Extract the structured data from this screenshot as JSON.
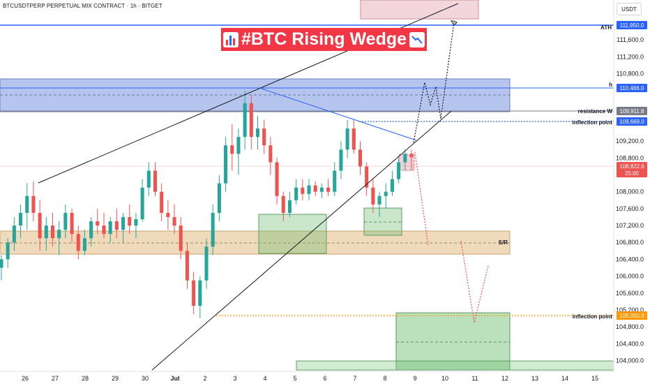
{
  "header": {
    "symbol_line": "BTCUSDTPERP PERPETUAL MIX CONTRACT · 1h · BITGET",
    "unit": "USDT"
  },
  "title": {
    "text": "#BTC Rising Wedge",
    "left_icon": "bar-chart-icon",
    "right_icon": "chart-decreasing-icon"
  },
  "colors": {
    "bull": "#26a69a",
    "bear": "#ef5350",
    "zone_blue": "#5b7fd6",
    "zone_orange": "#e0b57a",
    "zone_green": "#66bb6a",
    "zone_pink": "#e9b4bf",
    "ath_line": "#2962ff",
    "inflection_orange": "#ff9800",
    "title_bg": "#f23645"
  },
  "chart_data": {
    "type": "candlestick",
    "title": "#BTC Rising Wedge",
    "ylim": [
      103800,
      112500
    ],
    "x_ticks": [
      "26",
      "27",
      "28",
      "29",
      "30",
      "Jul",
      "2",
      "3",
      "4",
      "5",
      "6",
      "7",
      "8",
      "9",
      "10",
      "11",
      "12",
      "13",
      "14",
      "15"
    ],
    "y_ticks": [
      "111,600.0",
      "111,200.0",
      "110,800.0",
      "109,200.0",
      "108,800.0",
      "108,000.0",
      "107,600.0",
      "107,200.0",
      "106,800.0",
      "106,400.0",
      "106,000.0",
      "105,600.0",
      "105,200.0",
      "104,800.0",
      "104,400.0",
      "104,000.0"
    ],
    "price_badges": [
      {
        "label": "ATH",
        "value": "111,950.0"
      },
      {
        "label": "h",
        "value": "110,466.0"
      },
      {
        "label": "resistance W",
        "value": "109,911.8"
      },
      {
        "label": "inflection point",
        "value": "109,669.0"
      },
      {
        "label": "",
        "value": "108,822.6",
        "sub": "25:00"
      },
      {
        "label": "S/R",
        "value": ""
      },
      {
        "label": "inflection point",
        "value": "105,050.0"
      }
    ],
    "candles": [
      {
        "o": 106200,
        "h": 106500,
        "l": 105900,
        "c": 106400
      },
      {
        "o": 106400,
        "h": 106900,
        "l": 106200,
        "c": 106800
      },
      {
        "o": 106800,
        "h": 107400,
        "l": 106600,
        "c": 107200
      },
      {
        "o": 107200,
        "h": 107700,
        "l": 106900,
        "c": 107500
      },
      {
        "o": 107500,
        "h": 108200,
        "l": 107100,
        "c": 107900
      },
      {
        "o": 107900,
        "h": 108250,
        "l": 107300,
        "c": 107500
      },
      {
        "o": 107500,
        "h": 107800,
        "l": 106600,
        "c": 106900
      },
      {
        "o": 106900,
        "h": 107400,
        "l": 106600,
        "c": 107200
      },
      {
        "o": 107200,
        "h": 107500,
        "l": 106700,
        "c": 106900
      },
      {
        "o": 106900,
        "h": 107300,
        "l": 106500,
        "c": 107100
      },
      {
        "o": 107100,
        "h": 107700,
        "l": 106900,
        "c": 107500
      },
      {
        "o": 107500,
        "h": 107600,
        "l": 106800,
        "c": 107000
      },
      {
        "o": 107000,
        "h": 107200,
        "l": 106400,
        "c": 106600
      },
      {
        "o": 106600,
        "h": 107100,
        "l": 106500,
        "c": 106900
      },
      {
        "o": 106900,
        "h": 107400,
        "l": 106700,
        "c": 107300
      },
      {
        "o": 107300,
        "h": 107600,
        "l": 107000,
        "c": 107200
      },
      {
        "o": 107200,
        "h": 107500,
        "l": 106900,
        "c": 107000
      },
      {
        "o": 107000,
        "h": 107400,
        "l": 106800,
        "c": 107300
      },
      {
        "o": 107300,
        "h": 107600,
        "l": 106900,
        "c": 107100
      },
      {
        "o": 107100,
        "h": 107500,
        "l": 106800,
        "c": 107400
      },
      {
        "o": 107400,
        "h": 107700,
        "l": 107000,
        "c": 107200
      },
      {
        "o": 107200,
        "h": 107500,
        "l": 106900,
        "c": 107350
      },
      {
        "o": 107350,
        "h": 108300,
        "l": 107300,
        "c": 108100
      },
      {
        "o": 108100,
        "h": 108700,
        "l": 107900,
        "c": 108500
      },
      {
        "o": 108500,
        "h": 108700,
        "l": 107900,
        "c": 108000
      },
      {
        "o": 108000,
        "h": 108200,
        "l": 107300,
        "c": 107500
      },
      {
        "o": 107500,
        "h": 107800,
        "l": 107100,
        "c": 107400
      },
      {
        "o": 107400,
        "h": 107700,
        "l": 107000,
        "c": 107200
      },
      {
        "o": 107200,
        "h": 107400,
        "l": 106400,
        "c": 106600
      },
      {
        "o": 106600,
        "h": 106800,
        "l": 105700,
        "c": 105900
      },
      {
        "o": 105900,
        "h": 106100,
        "l": 105100,
        "c": 105300
      },
      {
        "o": 105300,
        "h": 106000,
        "l": 105000,
        "c": 105900
      },
      {
        "o": 105900,
        "h": 106900,
        "l": 105700,
        "c": 106700
      },
      {
        "o": 106700,
        "h": 107700,
        "l": 106500,
        "c": 107500
      },
      {
        "o": 107500,
        "h": 108400,
        "l": 107300,
        "c": 108200
      },
      {
        "o": 108200,
        "h": 109300,
        "l": 108000,
        "c": 109100
      },
      {
        "o": 109100,
        "h": 109600,
        "l": 108500,
        "c": 108900
      },
      {
        "o": 108900,
        "h": 109500,
        "l": 108400,
        "c": 109300
      },
      {
        "o": 109300,
        "h": 110400,
        "l": 109000,
        "c": 110100
      },
      {
        "o": 110100,
        "h": 110300,
        "l": 109000,
        "c": 109300
      },
      {
        "o": 109300,
        "h": 109800,
        "l": 109000,
        "c": 109500
      },
      {
        "o": 109500,
        "h": 109700,
        "l": 108900,
        "c": 109100
      },
      {
        "o": 109100,
        "h": 109300,
        "l": 108400,
        "c": 108700
      },
      {
        "o": 108700,
        "h": 108800,
        "l": 107700,
        "c": 107900
      },
      {
        "o": 107900,
        "h": 108000,
        "l": 107300,
        "c": 107500
      },
      {
        "o": 107500,
        "h": 108000,
        "l": 107400,
        "c": 107800
      },
      {
        "o": 107800,
        "h": 108300,
        "l": 107700,
        "c": 108100
      },
      {
        "o": 108100,
        "h": 108300,
        "l": 107800,
        "c": 107950
      },
      {
        "o": 107950,
        "h": 108300,
        "l": 107800,
        "c": 108150
      },
      {
        "o": 108150,
        "h": 108250,
        "l": 107900,
        "c": 108000
      },
      {
        "o": 108000,
        "h": 108200,
        "l": 107850,
        "c": 108100
      },
      {
        "o": 108100,
        "h": 108300,
        "l": 107900,
        "c": 108000
      },
      {
        "o": 108000,
        "h": 108700,
        "l": 107900,
        "c": 108500
      },
      {
        "o": 108500,
        "h": 109200,
        "l": 108300,
        "c": 109000
      },
      {
        "o": 109000,
        "h": 109700,
        "l": 108800,
        "c": 109500
      },
      {
        "o": 109500,
        "h": 109700,
        "l": 108900,
        "c": 109000
      },
      {
        "o": 109000,
        "h": 109200,
        "l": 108400,
        "c": 108600
      },
      {
        "o": 108600,
        "h": 108700,
        "l": 107900,
        "c": 108100
      },
      {
        "o": 108100,
        "h": 108300,
        "l": 107500,
        "c": 107700
      },
      {
        "o": 107700,
        "h": 108000,
        "l": 107400,
        "c": 107900
      },
      {
        "o": 107900,
        "h": 108200,
        "l": 107600,
        "c": 108000
      },
      {
        "o": 108000,
        "h": 108500,
        "l": 107900,
        "c": 108300
      },
      {
        "o": 108300,
        "h": 108800,
        "l": 108200,
        "c": 108700
      },
      {
        "o": 108700,
        "h": 109000,
        "l": 108500,
        "c": 108900
      },
      {
        "o": 108900,
        "h": 109000,
        "l": 108500,
        "c": 108823
      }
    ]
  }
}
